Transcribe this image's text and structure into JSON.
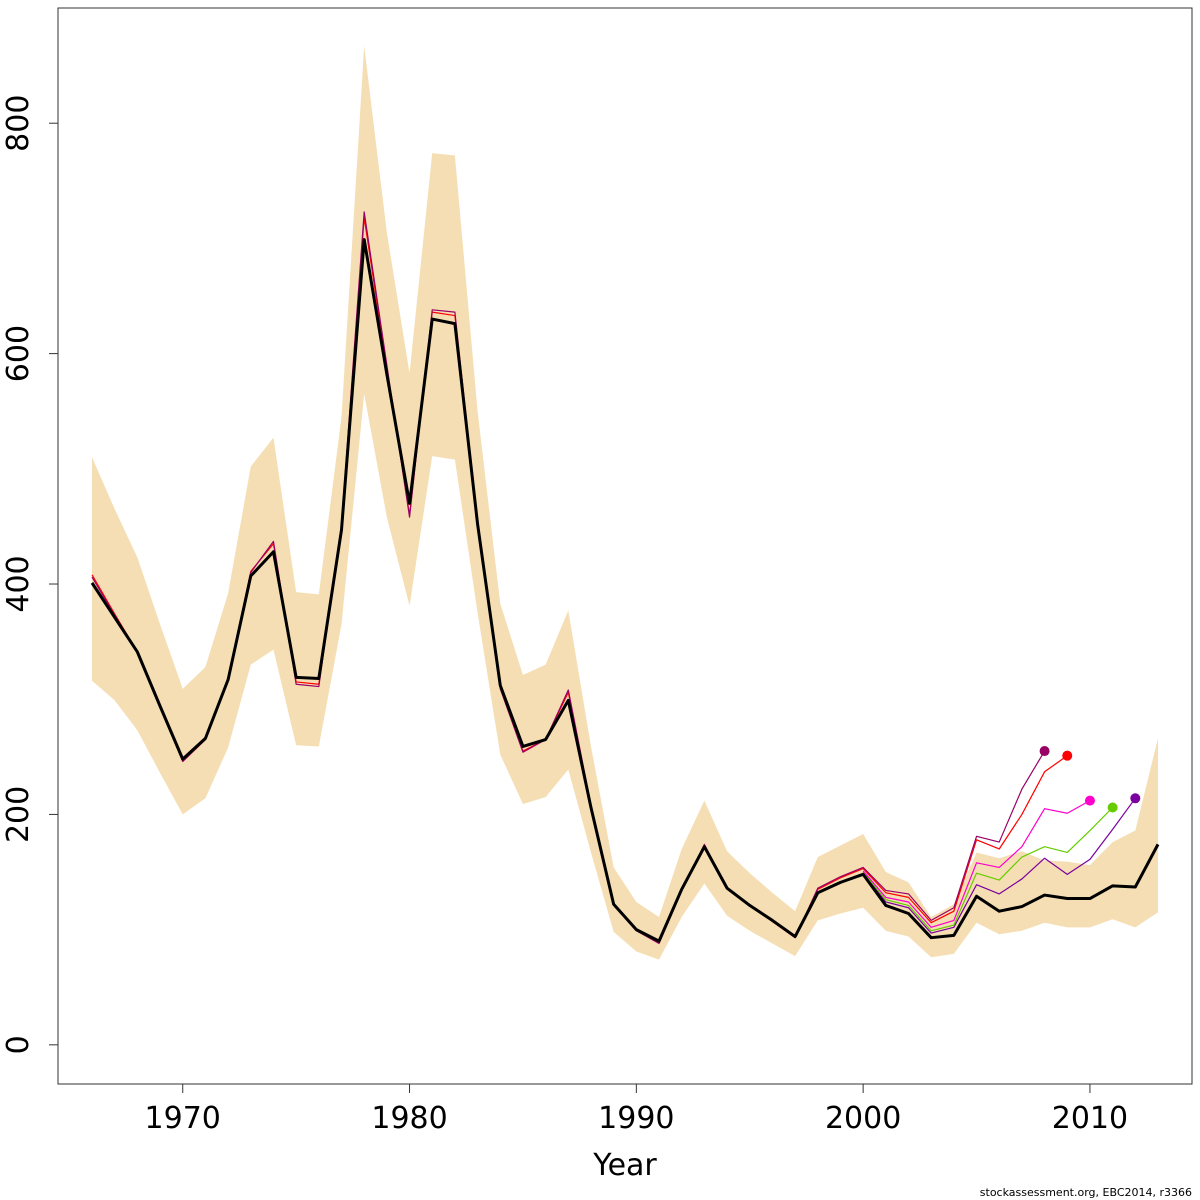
{
  "chart_data": {
    "type": "line",
    "xlabel": "Year",
    "ylabel": "",
    "xlim": [
      1964.5,
      2014.5
    ],
    "ylim": [
      -34,
      900
    ],
    "x_ticks": [
      1970,
      1980,
      1990,
      2000,
      2010
    ],
    "y_ticks": [
      0,
      200,
      400,
      600,
      800
    ],
    "grid": false,
    "legend": "none",
    "credit": "stockassessment.org, EBC2014, r3366",
    "band": {
      "color": "#F5DEB3",
      "x": [
        1966,
        1967,
        1968,
        1969,
        1970,
        1971,
        1972,
        1973,
        1974,
        1975,
        1976,
        1977,
        1978,
        1979,
        1980,
        1981,
        1982,
        1983,
        1984,
        1985,
        1986,
        1987,
        1988,
        1989,
        1990,
        1991,
        1992,
        1993,
        1994,
        1995,
        1996,
        1997,
        1998,
        1999,
        2000,
        2001,
        2002,
        2003,
        2004,
        2005,
        2006,
        2007,
        2008,
        2009,
        2010,
        2011,
        2012,
        2013
      ],
      "upper": [
        510,
        465,
        423,
        365,
        309,
        328,
        392,
        502,
        527,
        393,
        391,
        545,
        867,
        705,
        583,
        774,
        772,
        550,
        383,
        321,
        330,
        377,
        259,
        154,
        124,
        111,
        170,
        212,
        168,
        149,
        132,
        116,
        163,
        173,
        183,
        150,
        141,
        111,
        122,
        167,
        162,
        168,
        160,
        159,
        156,
        176,
        186,
        266
      ],
      "lower": [
        316,
        299,
        273,
        236,
        200,
        214,
        258,
        330,
        343,
        260,
        259,
        365,
        565,
        458,
        381,
        511,
        508,
        375,
        252,
        209,
        215,
        239,
        167,
        98,
        81,
        74,
        111,
        140,
        112,
        99,
        88,
        77,
        108,
        114,
        119,
        99,
        94,
        76,
        79,
        106,
        96,
        99,
        106,
        102,
        102,
        109,
        102,
        115
      ]
    },
    "series": [
      {
        "color": "#000000",
        "width": 3,
        "x": [
          1966,
          1967,
          1968,
          1969,
          1970,
          1971,
          1972,
          1973,
          1974,
          1975,
          1976,
          1977,
          1978,
          1979,
          1980,
          1981,
          1982,
          1983,
          1984,
          1985,
          1986,
          1987,
          1988,
          1989,
          1990,
          1991,
          1992,
          1993,
          1994,
          1995,
          1996,
          1997,
          1998,
          1999,
          2000,
          2001,
          2002,
          2003,
          2004,
          2005,
          2006,
          2007,
          2008,
          2009,
          2010,
          2011,
          2012,
          2013
        ],
        "values": [
          401,
          371,
          341,
          294,
          248,
          266,
          317,
          407,
          428,
          319,
          318,
          447,
          699,
          582,
          470,
          630,
          626,
          452,
          312,
          259,
          265,
          299,
          206,
          122,
          100,
          90,
          135,
          172,
          136,
          121,
          108,
          94,
          132,
          141,
          148,
          121,
          114,
          93,
          95,
          129,
          116,
          120,
          130,
          127,
          127,
          138,
          137,
          174
        ]
      },
      {
        "color": "#7B00A0",
        "width": 1.2,
        "x": [
          2000,
          2001,
          2002,
          2003,
          2004,
          2005,
          2006,
          2007,
          2008,
          2009,
          2010,
          2011,
          2012
        ],
        "values": [
          149,
          124,
          119,
          97,
          102,
          139,
          131,
          144,
          162,
          148,
          161,
          187,
          214
        ],
        "end_point": true
      },
      {
        "color": "#66CC00",
        "width": 1.2,
        "x": [
          2000,
          2001,
          2002,
          2003,
          2004,
          2005,
          2006,
          2007,
          2008,
          2009,
          2010,
          2011
        ],
        "values": [
          150,
          126,
          121,
          99,
          104,
          149,
          143,
          163,
          172,
          167,
          186,
          206
        ],
        "end_point": true
      },
      {
        "color": "#FF00CC",
        "width": 1.2,
        "x": [
          2000,
          2001,
          2002,
          2003,
          2004,
          2005,
          2006,
          2007,
          2008,
          2009,
          2010
        ],
        "values": [
          151,
          128,
          124,
          102,
          108,
          158,
          154,
          172,
          205,
          201,
          212
        ],
        "end_point": true
      },
      {
        "color": "#FF0000",
        "width": 1.2,
        "x": [
          1966,
          1967,
          1968,
          1969,
          1970,
          1971,
          1972,
          1973,
          1974,
          1975,
          1976,
          1977,
          1978,
          1979,
          1980,
          1981,
          1982,
          1983,
          1984,
          1985,
          1986,
          1987,
          1988,
          1989,
          1990,
          1991,
          1992,
          1993,
          1994,
          1995,
          1996,
          1997,
          1998,
          1999,
          2000,
          2001,
          2002,
          2003,
          2004,
          2005,
          2006,
          2007,
          2008,
          2009
        ],
        "values": [
          408,
          374,
          341,
          293,
          246,
          265,
          318,
          411,
          435,
          315,
          313,
          450,
          718,
          587,
          460,
          636,
          633,
          451,
          310,
          255,
          265,
          306,
          207,
          122,
          100,
          89,
          134,
          173,
          136,
          121,
          107,
          93,
          135,
          145,
          153,
          132,
          128,
          106,
          116,
          178,
          170,
          200,
          237,
          251
        ],
        "end_point": true
      },
      {
        "color": "#990066",
        "width": 1.2,
        "x": [
          1966,
          1967,
          1968,
          1969,
          1970,
          1971,
          1972,
          1973,
          1974,
          1975,
          1976,
          1977,
          1978,
          1979,
          1980,
          1981,
          1982,
          1983,
          1984,
          1985,
          1986,
          1987,
          1988,
          1989,
          1990,
          1991,
          1992,
          1993,
          1994,
          1995,
          1996,
          1997,
          1998,
          1999,
          2000,
          2001,
          2002,
          2003,
          2004,
          2005,
          2006,
          2007,
          2008
        ],
        "values": [
          406,
          373,
          341,
          293,
          246,
          265,
          318,
          410,
          437,
          313,
          311,
          451,
          723,
          590,
          458,
          638,
          636,
          452,
          309,
          254,
          265,
          308,
          208,
          121,
          99,
          88,
          134,
          174,
          136,
          121,
          107,
          93,
          136,
          146,
          154,
          134,
          131,
          108,
          119,
          181,
          176,
          222,
          255
        ],
        "end_point": true
      }
    ]
  }
}
